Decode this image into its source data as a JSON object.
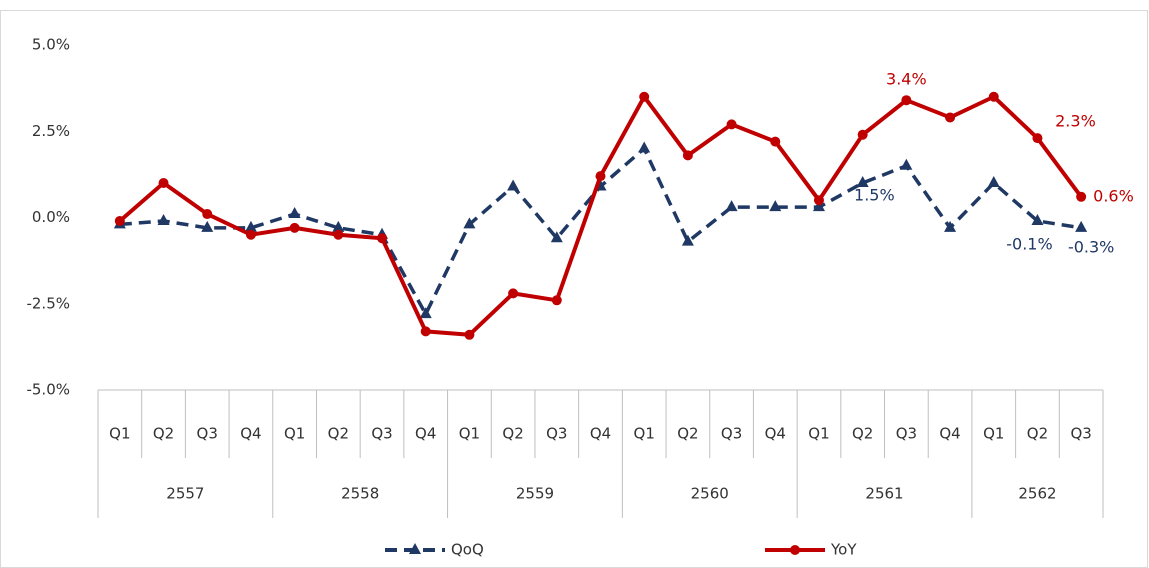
{
  "chart_data": {
    "type": "line",
    "category_groups": [
      {
        "label": "2557",
        "categories": [
          "Q1",
          "Q2",
          "Q3",
          "Q4"
        ]
      },
      {
        "label": "2558",
        "categories": [
          "Q1",
          "Q2",
          "Q3",
          "Q4"
        ]
      },
      {
        "label": "2559",
        "categories": [
          "Q1",
          "Q2",
          "Q3",
          "Q4"
        ]
      },
      {
        "label": "2560",
        "categories": [
          "Q1",
          "Q2",
          "Q3",
          "Q4"
        ]
      },
      {
        "label": "2561",
        "categories": [
          "Q1",
          "Q2",
          "Q3",
          "Q4"
        ]
      },
      {
        "label": "2562",
        "categories": [
          "Q1",
          "Q2",
          "Q3"
        ]
      }
    ],
    "series": [
      {
        "name": "QoQ",
        "color": "#1f3864",
        "dashed": true,
        "marker": "triangle",
        "values": [
          -0.2,
          -0.1,
          -0.3,
          -0.3,
          0.1,
          -0.3,
          -0.5,
          -2.8,
          -0.2,
          0.9,
          -0.6,
          0.9,
          2.0,
          -0.7,
          0.3,
          0.3,
          0.3,
          1.0,
          1.5,
          -0.3,
          1.0,
          -0.1,
          -0.3
        ],
        "value_labels": [
          null,
          null,
          null,
          null,
          null,
          null,
          null,
          null,
          null,
          null,
          null,
          null,
          null,
          null,
          null,
          null,
          null,
          null,
          "1.5%",
          null,
          null,
          "-0.1%",
          "-0.3%"
        ]
      },
      {
        "name": "YoY",
        "color": "#c00000",
        "dashed": false,
        "marker": "circle",
        "values": [
          -0.1,
          1.0,
          0.1,
          -0.5,
          -0.3,
          -0.5,
          -0.6,
          -3.3,
          -3.4,
          -2.2,
          -2.4,
          1.2,
          3.5,
          1.8,
          2.7,
          2.2,
          0.5,
          2.4,
          3.4,
          2.9,
          3.5,
          2.3,
          0.6
        ],
        "value_labels": [
          null,
          null,
          null,
          null,
          null,
          null,
          null,
          null,
          null,
          null,
          null,
          null,
          null,
          null,
          null,
          null,
          null,
          null,
          "3.4%",
          null,
          null,
          "2.3%",
          "0.6%"
        ]
      }
    ],
    "ylim": [
      -5,
      5
    ],
    "yticks": [
      {
        "value": -5,
        "label": "-5.0%"
      },
      {
        "value": -2.5,
        "label": "-2.5%"
      },
      {
        "value": 0,
        "label": "0.0%"
      },
      {
        "value": 2.5,
        "label": "2.5%"
      },
      {
        "value": 5,
        "label": "5.0%"
      }
    ],
    "grid": false,
    "legend": "bottom"
  }
}
